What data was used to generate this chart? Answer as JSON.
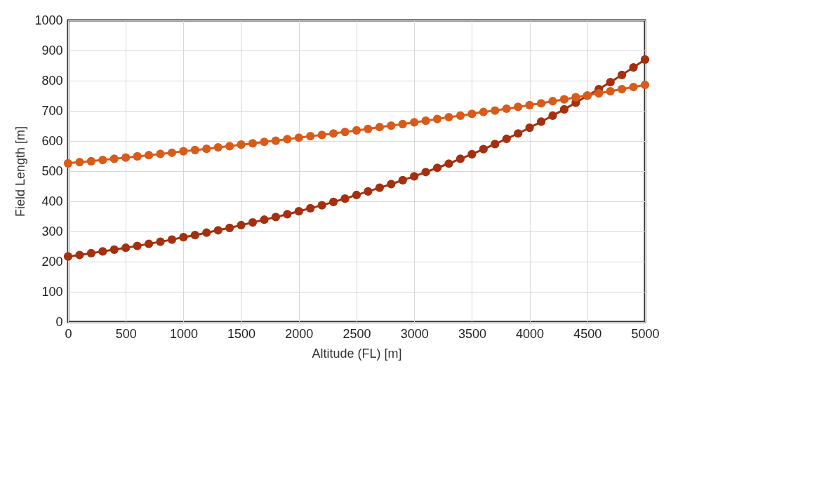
{
  "chart_data": {
    "type": "line",
    "xlabel": "Altitude (FL) [m]",
    "ylabel": "Field Length [m]",
    "x": [
      0,
      100,
      200,
      300,
      400,
      500,
      600,
      700,
      800,
      900,
      1000,
      1100,
      1200,
      1300,
      1400,
      1500,
      1600,
      1700,
      1800,
      1900,
      2000,
      2100,
      2200,
      2300,
      2400,
      2500,
      2600,
      2700,
      2800,
      2900,
      3000,
      3100,
      3200,
      3300,
      3400,
      3500,
      3600,
      3700,
      3800,
      3900,
      4000,
      4100,
      4200,
      4300,
      4400,
      4500,
      4600,
      4700,
      4800,
      4900,
      5000
    ],
    "series": [
      {
        "color": "#a5300f",
        "values": [
          217,
          222,
          228,
          234,
          240,
          246,
          252,
          259,
          266,
          273,
          281,
          288,
          296,
          304,
          312,
          321,
          330,
          339,
          348,
          357,
          367,
          377,
          387,
          398,
          409,
          421,
          433,
          445,
          457,
          470,
          483,
          497,
          511,
          525,
          541,
          556,
          573,
          590,
          607,
          625,
          644,
          664,
          684,
          705,
          727,
          750,
          772,
          795,
          819,
          844,
          870
        ]
      },
      {
        "color": "#d95b1a",
        "values": [
          526,
          530,
          533,
          537,
          541,
          545,
          549,
          553,
          557,
          561,
          566,
          570,
          574,
          579,
          583,
          588,
          592,
          597,
          601,
          606,
          611,
          616,
          620,
          625,
          630,
          635,
          640,
          646,
          651,
          656,
          662,
          667,
          673,
          679,
          684,
          690,
          696,
          701,
          707,
          713,
          719,
          725,
          732,
          738,
          745,
          751,
          758,
          765,
          772,
          779,
          786
        ]
      }
    ],
    "xlim": [
      0,
      5000
    ],
    "xticks": [
      0,
      500,
      1000,
      1500,
      2000,
      2500,
      3000,
      3500,
      4000,
      4500,
      5000
    ],
    "ylim": [
      0,
      1000
    ],
    "yticks": [
      0,
      100,
      200,
      300,
      400,
      500,
      600,
      700,
      800,
      900,
      1000
    ],
    "grid": true,
    "marker": "circle",
    "line_style": "solid"
  }
}
